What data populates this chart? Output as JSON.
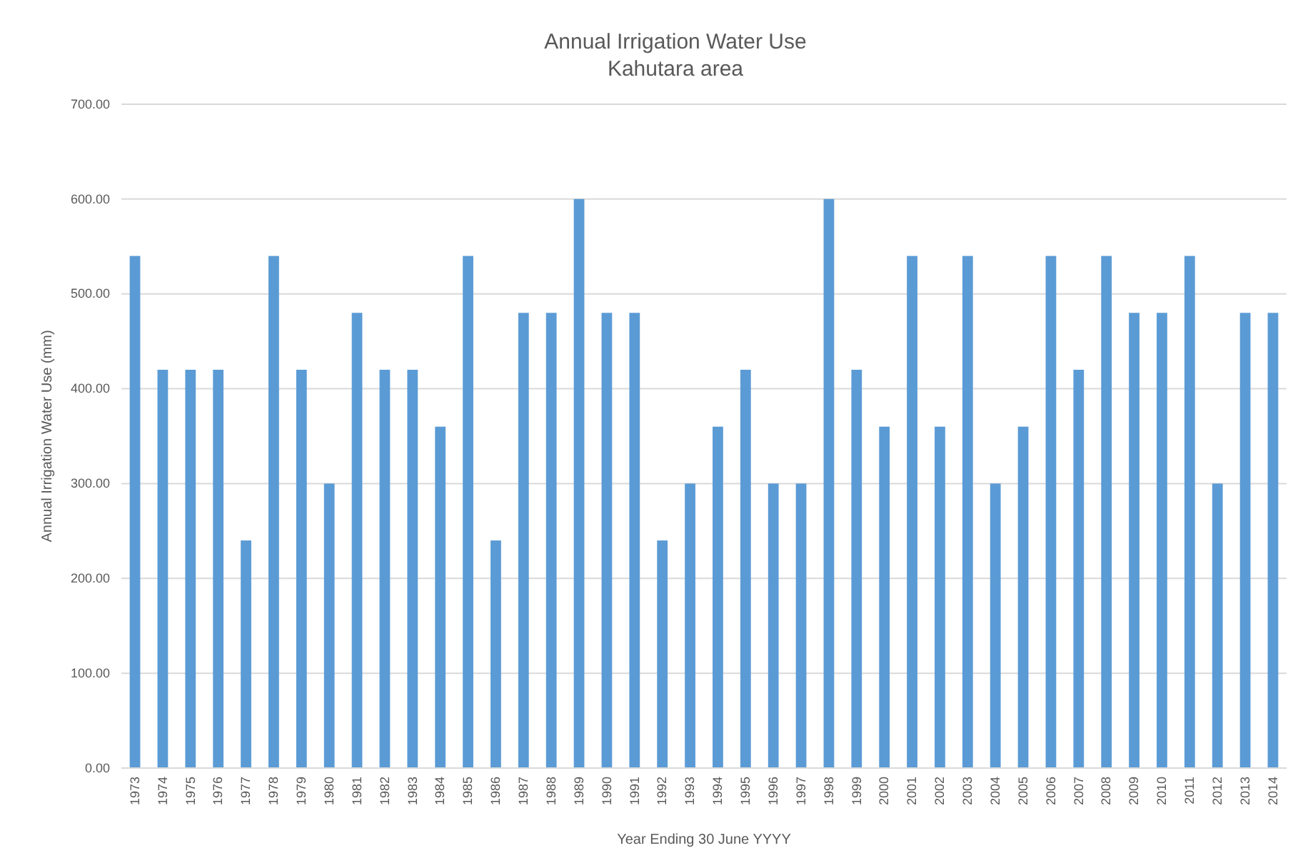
{
  "chart_data": {
    "type": "bar",
    "title": "Annual Irrigation Water Use",
    "subtitle": "Kahutara area",
    "xlabel": "Year Ending 30 June YYYY",
    "ylabel": "Annual Irrigation Water Use (mm)",
    "categories": [
      "1973",
      "1974",
      "1975",
      "1976",
      "1977",
      "1978",
      "1979",
      "1980",
      "1981",
      "1982",
      "1983",
      "1984",
      "1985",
      "1986",
      "1987",
      "1988",
      "1989",
      "1990",
      "1991",
      "1992",
      "1993",
      "1994",
      "1995",
      "1996",
      "1997",
      "1998",
      "1999",
      "2000",
      "2001",
      "2002",
      "2003",
      "2004",
      "2005",
      "2006",
      "2007",
      "2008",
      "2009",
      "2010",
      "2011",
      "2012",
      "2013",
      "2014"
    ],
    "values": [
      540,
      420,
      420,
      420,
      240,
      540,
      420,
      300,
      480,
      420,
      420,
      360,
      540,
      240,
      480,
      480,
      600,
      480,
      480,
      240,
      300,
      360,
      420,
      300,
      300,
      600,
      420,
      360,
      540,
      360,
      540,
      300,
      360,
      540,
      420,
      540,
      480,
      480,
      540,
      300,
      480,
      480
    ],
    "color": "#5b9bd5",
    "ylim": [
      0,
      700
    ],
    "yticks": [
      {
        "value": 0,
        "label": "0.00"
      },
      {
        "value": 100,
        "label": "100.00"
      },
      {
        "value": 200,
        "label": "200.00"
      },
      {
        "value": 300,
        "label": "300.00"
      },
      {
        "value": 400,
        "label": "400.00"
      },
      {
        "value": 500,
        "label": "500.00"
      },
      {
        "value": 600,
        "label": "600.00"
      },
      {
        "value": 700,
        "label": "700.00"
      }
    ],
    "grid": "y"
  }
}
